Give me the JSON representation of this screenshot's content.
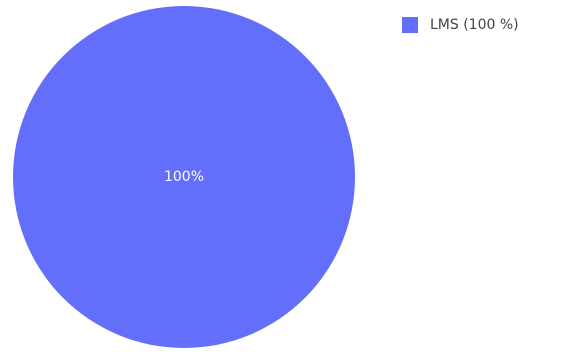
{
  "chart_data": {
    "type": "pie",
    "slices": [
      {
        "label": "LMS",
        "value": 100,
        "percent_label": "100%",
        "color": "#636efa"
      }
    ],
    "legend": {
      "placement": "top-right",
      "entries": [
        "LMS (100 %)"
      ]
    },
    "title": ""
  }
}
